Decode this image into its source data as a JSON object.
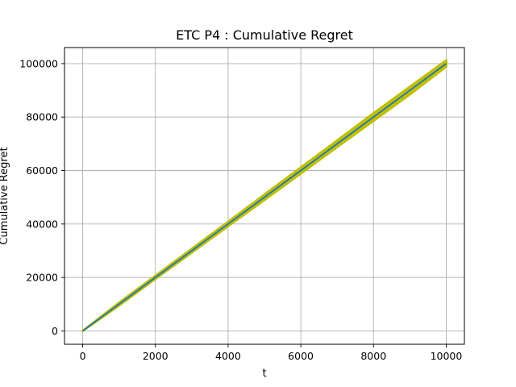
{
  "chart_data": {
    "type": "line",
    "title": "ETC P4 : Cumulative Regret",
    "xlabel": "t",
    "ylabel": "Cumulative Regret",
    "xlim": [
      -500,
      10500
    ],
    "ylim": [
      -5000,
      106000
    ],
    "grid": true,
    "x_ticks": [
      0,
      2000,
      4000,
      6000,
      8000,
      10000
    ],
    "y_ticks": [
      0,
      20000,
      40000,
      60000,
      80000,
      100000
    ],
    "band": {
      "x": [
        0,
        1000,
        2000,
        3000,
        4000,
        5000,
        6000,
        7000,
        8000,
        9000,
        10000
      ],
      "lower": [
        0,
        9500,
        19500,
        29300,
        39200,
        49000,
        58900,
        68800,
        78600,
        88500,
        98900
      ],
      "upper": [
        0,
        10500,
        20600,
        30700,
        40800,
        51000,
        61100,
        71200,
        81400,
        91300,
        101200
      ]
    },
    "series": [
      {
        "x": [
          0,
          1000,
          2000,
          3000,
          4000,
          5000,
          6000,
          7000,
          8000,
          9000,
          10000
        ],
        "y": [
          0,
          10000,
          20000,
          30000,
          40000,
          50000,
          60000,
          70000,
          80000,
          90000,
          100000
        ]
      }
    ],
    "colors": {
      "line": "#1f77b4",
      "band": "#bfbf00",
      "grid": "#b0b0b0"
    }
  }
}
